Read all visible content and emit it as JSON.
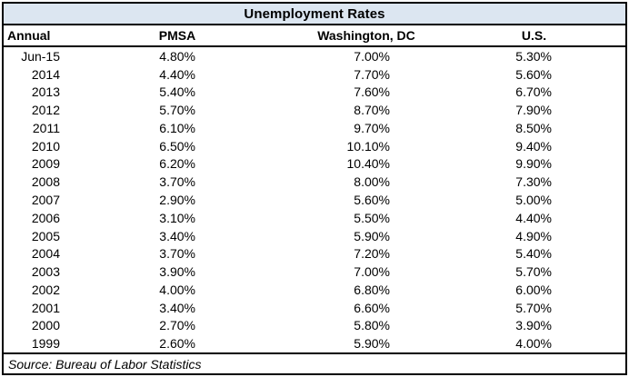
{
  "title": "Unemployment Rates",
  "header": {
    "annual": "Annual",
    "pmsa": "PMSA",
    "dc": "Washington, DC",
    "us": "U.S."
  },
  "rows": [
    {
      "period": "Jun-15",
      "pmsa": "4.80%",
      "dc": "7.00%",
      "us": "5.30%"
    },
    {
      "period": "2014",
      "pmsa": "4.40%",
      "dc": "7.70%",
      "us": "5.60%"
    },
    {
      "period": "2013",
      "pmsa": "5.40%",
      "dc": "7.60%",
      "us": "6.70%"
    },
    {
      "period": "2012",
      "pmsa": "5.70%",
      "dc": "8.70%",
      "us": "7.90%"
    },
    {
      "period": "2011",
      "pmsa": "6.10%",
      "dc": "9.70%",
      "us": "8.50%"
    },
    {
      "period": "2010",
      "pmsa": "6.50%",
      "dc": "10.10%",
      "us": "9.40%"
    },
    {
      "period": "2009",
      "pmsa": "6.20%",
      "dc": "10.40%",
      "us": "9.90%"
    },
    {
      "period": "2008",
      "pmsa": "3.70%",
      "dc": "8.00%",
      "us": "7.30%"
    },
    {
      "period": "2007",
      "pmsa": "2.90%",
      "dc": "5.60%",
      "us": "5.00%"
    },
    {
      "period": "2006",
      "pmsa": "3.10%",
      "dc": "5.50%",
      "us": "4.40%"
    },
    {
      "period": "2005",
      "pmsa": "3.40%",
      "dc": "5.90%",
      "us": "4.90%"
    },
    {
      "period": "2004",
      "pmsa": "3.70%",
      "dc": "7.20%",
      "us": "5.40%"
    },
    {
      "period": "2003",
      "pmsa": "3.90%",
      "dc": "7.00%",
      "us": "5.70%"
    },
    {
      "period": "2002",
      "pmsa": "4.00%",
      "dc": "6.80%",
      "us": "6.00%"
    },
    {
      "period": "2001",
      "pmsa": "3.40%",
      "dc": "6.60%",
      "us": "5.70%"
    },
    {
      "period": "2000",
      "pmsa": "2.70%",
      "dc": "5.80%",
      "us": "3.90%"
    },
    {
      "period": "1999",
      "pmsa": "2.60%",
      "dc": "5.90%",
      "us": "4.00%"
    }
  ],
  "source": "Source: Bureau of Labor Statistics",
  "colors": {
    "title_bg": "#dce6f1",
    "border": "#000000",
    "text": "#000000",
    "background": "#ffffff"
  },
  "chart_data": {
    "type": "table",
    "title": "Unemployment Rates",
    "columns": [
      "Annual",
      "PMSA",
      "Washington, DC",
      "U.S."
    ],
    "units": "percent",
    "rows": [
      [
        "Jun-15",
        4.8,
        7.0,
        5.3
      ],
      [
        "2014",
        4.4,
        7.7,
        5.6
      ],
      [
        "2013",
        5.4,
        7.6,
        6.7
      ],
      [
        "2012",
        5.7,
        8.7,
        7.9
      ],
      [
        "2011",
        6.1,
        9.7,
        8.5
      ],
      [
        "2010",
        6.5,
        10.1,
        9.4
      ],
      [
        "2009",
        6.2,
        10.4,
        9.9
      ],
      [
        "2008",
        3.7,
        8.0,
        7.3
      ],
      [
        "2007",
        2.9,
        5.6,
        5.0
      ],
      [
        "2006",
        3.1,
        5.5,
        4.4
      ],
      [
        "2005",
        3.4,
        5.9,
        4.9
      ],
      [
        "2004",
        3.7,
        7.2,
        5.4
      ],
      [
        "2003",
        3.9,
        7.0,
        5.7
      ],
      [
        "2002",
        4.0,
        6.8,
        6.0
      ],
      [
        "2001",
        3.4,
        6.6,
        5.7
      ],
      [
        "2000",
        2.7,
        5.8,
        3.9
      ],
      [
        "1999",
        2.6,
        5.9,
        4.0
      ]
    ],
    "source": "Source: Bureau of Labor Statistics"
  }
}
